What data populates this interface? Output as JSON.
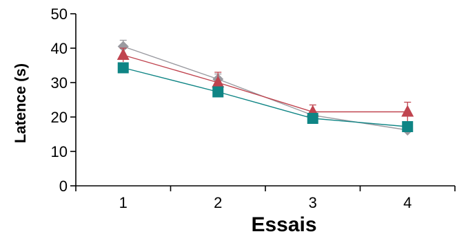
{
  "chart_data": {
    "type": "line",
    "title": "",
    "xlabel": "Essais",
    "ylabel": "Latence (s)",
    "x": [
      1,
      2,
      3,
      4
    ],
    "x_tick_labels": [
      "1",
      "2",
      "3",
      "4"
    ],
    "y_tick_labels": [
      "0",
      "10",
      "20",
      "30",
      "40",
      "50"
    ],
    "ylim": [
      0,
      50
    ],
    "xlim": [
      0.5,
      4.5
    ],
    "grid": false,
    "series": [
      {
        "marker": "diamond",
        "color": "#9a9aa0",
        "values": [
          40.5,
          31,
          20.5,
          16.2
        ],
        "error": [
          1.8,
          1.5,
          1.2,
          1.0
        ]
      },
      {
        "marker": "triangle",
        "color": "#c0444f",
        "values": [
          38,
          30,
          21.5,
          21.5
        ],
        "error": [
          2.0,
          3.0,
          2.0,
          2.8
        ]
      },
      {
        "marker": "square",
        "color": "#0f8585",
        "values": [
          34.3,
          27.3,
          19.6,
          17.2
        ],
        "error": [
          1.0,
          1.0,
          1.0,
          1.0
        ]
      }
    ]
  }
}
